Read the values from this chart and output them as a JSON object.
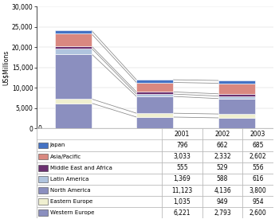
{
  "years": [
    "2001",
    "2002",
    "2003"
  ],
  "categories": [
    "Japan",
    "Asia/Pacific",
    "Middle East and Africa",
    "Latin America",
    "North America",
    "Eastern Europe",
    "Western Europe"
  ],
  "values": {
    "Japan": [
      796,
      662,
      685
    ],
    "Asia/Pacific": [
      3033,
      2332,
      2602
    ],
    "Middle East and Africa": [
      555,
      529,
      556
    ],
    "Latin America": [
      1369,
      588,
      616
    ],
    "North America": [
      11123,
      4136,
      3800
    ],
    "Eastern Europe": [
      1035,
      949,
      954
    ],
    "Western Europe": [
      6221,
      2793,
      2600
    ]
  },
  "stack_order": [
    "Western Europe",
    "Eastern Europe",
    "North America",
    "Latin America",
    "Middle East and Africa",
    "Asia/Pacific",
    "Japan"
  ],
  "stack_colors": {
    "Western Europe": "#8B8FBF",
    "Eastern Europe": "#EFEFD0",
    "North America": "#8B8FBF",
    "Latin America": "#B0C4DE",
    "Middle East and Africa": "#6B3070",
    "Asia/Pacific": "#D98880",
    "Japan": "#4472C4"
  },
  "ylabel": "US$Millions",
  "ylim": [
    0,
    30000
  ],
  "yticks": [
    0,
    5000,
    10000,
    15000,
    20000,
    25000,
    30000
  ],
  "table_values": [
    [
      "796",
      "662",
      "685"
    ],
    [
      "3,033",
      "2,332",
      "2,602"
    ],
    [
      "555",
      "529",
      "556"
    ],
    [
      "1,369",
      "588",
      "616"
    ],
    [
      "11,123",
      "4,136",
      "3,800"
    ],
    [
      "1,035",
      "949",
      "954"
    ],
    [
      "6,221",
      "2,793",
      "2,600"
    ]
  ],
  "legend_labels": [
    "Japan",
    "Asia/Pacific",
    "Middle East and Africa",
    "Latin America",
    "North America",
    "Eastern Europe",
    "Western Europe"
  ],
  "legend_colors": [
    "#4472C4",
    "#D98880",
    "#6B3070",
    "#B0C4DE",
    "#8B8FBF",
    "#EFEFD0",
    "#8B8FBF"
  ]
}
